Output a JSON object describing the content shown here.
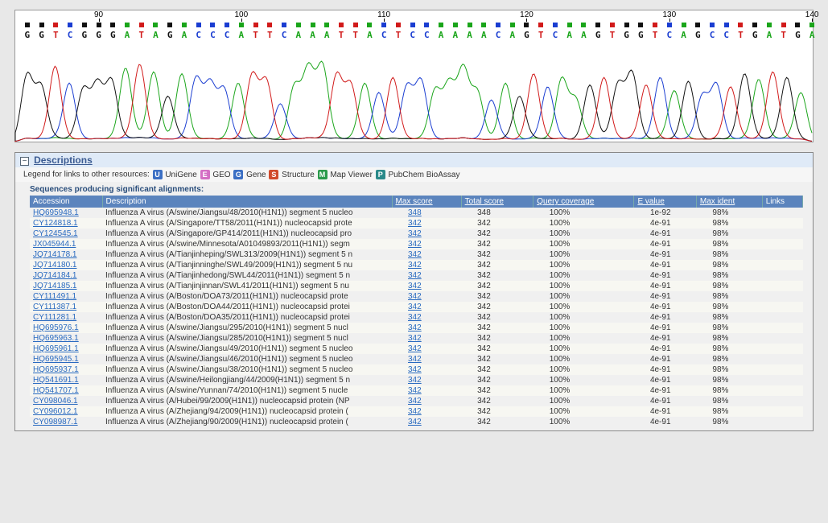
{
  "chromatogram": {
    "ruler_start": 85,
    "ruler_end": 140,
    "ruler_labels": [
      90,
      100,
      110,
      120,
      130,
      140
    ],
    "sequence": "GGTCGGGATAGACCCATTCAAATTACTCCAAAACAGTCAAGTGGTCAGCCTGATGA",
    "base_colors": {
      "A": "#1aa51a",
      "C": "#1a3dd1",
      "G": "#111111",
      "T": "#d11a1a"
    },
    "dot_colors": {
      "A": "#1aa51a",
      "C": "#1a3dd1",
      "G": "#111111",
      "T": "#d11a1a"
    },
    "peak_heights": [
      70,
      58,
      80,
      62,
      55,
      60,
      64,
      78,
      82,
      74,
      48,
      72,
      66,
      60,
      55,
      62,
      70,
      64,
      40,
      58,
      76,
      80,
      70,
      60,
      62,
      52,
      68,
      58,
      64,
      54,
      60,
      76,
      52,
      44,
      62,
      48,
      72,
      58,
      66,
      44,
      60,
      68,
      60,
      72,
      60,
      68,
      54,
      64,
      48,
      60,
      58,
      72,
      66,
      74,
      68,
      52
    ],
    "trace_height": 118,
    "background": "#ffffff"
  },
  "blast": {
    "section_title": "Descriptions",
    "legend_prefix": "Legend for links to other resources:",
    "legend_items": [
      {
        "badge": "U",
        "color": "#3b6fc4",
        "label": "UniGene"
      },
      {
        "badge": "E",
        "color": "#d46fc4",
        "label": "GEO"
      },
      {
        "badge": "G",
        "color": "#3b6fc4",
        "label": "Gene"
      },
      {
        "badge": "S",
        "color": "#d14a2a",
        "label": "Structure"
      },
      {
        "badge": "M",
        "color": "#2a9a4a",
        "label": "Map Viewer"
      },
      {
        "badge": "P",
        "color": "#2a8a8a",
        "label": "PubChem BioAssay"
      }
    ],
    "sig_label": "Sequences producing significant alignments:",
    "columns": [
      "Accession",
      "Description",
      "Max score",
      "Total score",
      "Query coverage",
      "E value",
      "Max ident",
      "Links"
    ],
    "rows": [
      {
        "acc": "HQ695948.1",
        "desc": "Influenza A virus (A/swine/Jiangsu/48/2010(H1N1)) segment 5 nucleo",
        "max": "348",
        "tot": "348",
        "cov": "100%",
        "ev": "1e-92",
        "ident": "98%"
      },
      {
        "acc": "CY124818.1",
        "desc": "Influenza A virus (A/Singapore/TT58/2011(H1N1)) nucleocapsid prote",
        "max": "342",
        "tot": "342",
        "cov": "100%",
        "ev": "4e-91",
        "ident": "98%"
      },
      {
        "acc": "CY124545.1",
        "desc": "Influenza A virus (A/Singapore/GP414/2011(H1N1)) nucleocapsid pro",
        "max": "342",
        "tot": "342",
        "cov": "100%",
        "ev": "4e-91",
        "ident": "98%"
      },
      {
        "acc": "JX045944.1",
        "desc": "Influenza A virus (A/swine/Minnesota/A01049893/2011(H1N1)) segm",
        "max": "342",
        "tot": "342",
        "cov": "100%",
        "ev": "4e-91",
        "ident": "98%"
      },
      {
        "acc": "JQ714178.1",
        "desc": "Influenza A virus (A/Tianjinheping/SWL313/2009(H1N1)) segment 5 n",
        "max": "342",
        "tot": "342",
        "cov": "100%",
        "ev": "4e-91",
        "ident": "98%"
      },
      {
        "acc": "JQ714180.1",
        "desc": "Influenza A virus (A/Tianjinninghe/SWL49/2009(H1N1)) segment 5 nu",
        "max": "342",
        "tot": "342",
        "cov": "100%",
        "ev": "4e-91",
        "ident": "98%"
      },
      {
        "acc": "JQ714184.1",
        "desc": "Influenza A virus (A/Tianjinhedong/SWL44/2011(H1N1)) segment 5 n",
        "max": "342",
        "tot": "342",
        "cov": "100%",
        "ev": "4e-91",
        "ident": "98%"
      },
      {
        "acc": "JQ714185.1",
        "desc": "Influenza A virus (A/Tianjinjinnan/SWL41/2011(H1N1)) segment 5 nu",
        "max": "342",
        "tot": "342",
        "cov": "100%",
        "ev": "4e-91",
        "ident": "98%"
      },
      {
        "acc": "CY111491.1",
        "desc": "Influenza A virus (A/Boston/DOA73/2011(H1N1)) nucleocapsid prote",
        "max": "342",
        "tot": "342",
        "cov": "100%",
        "ev": "4e-91",
        "ident": "98%"
      },
      {
        "acc": "CY111387.1",
        "desc": "Influenza A virus (A/Boston/DOA44/2011(H1N1)) nucleocapsid protei",
        "max": "342",
        "tot": "342",
        "cov": "100%",
        "ev": "4e-91",
        "ident": "98%"
      },
      {
        "acc": "CY111281.1",
        "desc": "Influenza A virus (A/Boston/DOA35/2011(H1N1)) nucleocapsid protei",
        "max": "342",
        "tot": "342",
        "cov": "100%",
        "ev": "4e-91",
        "ident": "98%"
      },
      {
        "acc": "HQ695976.1",
        "desc": "Influenza A virus (A/swine/Jiangsu/295/2010(H1N1)) segment 5 nucl",
        "max": "342",
        "tot": "342",
        "cov": "100%",
        "ev": "4e-91",
        "ident": "98%"
      },
      {
        "acc": "HQ695963.1",
        "desc": "Influenza A virus (A/swine/Jiangsu/285/2010(H1N1)) segment 5 nucl",
        "max": "342",
        "tot": "342",
        "cov": "100%",
        "ev": "4e-91",
        "ident": "98%"
      },
      {
        "acc": "HQ695961.1",
        "desc": "Influenza A virus (A/swine/Jiangsu/49/2010(H1N1)) segment 5 nucleo",
        "max": "342",
        "tot": "342",
        "cov": "100%",
        "ev": "4e-91",
        "ident": "98%"
      },
      {
        "acc": "HQ695945.1",
        "desc": "Influenza A virus (A/swine/Jiangsu/46/2010(H1N1)) segment 5 nucleo",
        "max": "342",
        "tot": "342",
        "cov": "100%",
        "ev": "4e-91",
        "ident": "98%"
      },
      {
        "acc": "HQ695937.1",
        "desc": "Influenza A virus (A/swine/Jiangsu/38/2010(H1N1)) segment 5 nucleo",
        "max": "342",
        "tot": "342",
        "cov": "100%",
        "ev": "4e-91",
        "ident": "98%"
      },
      {
        "acc": "HQ541691.1",
        "desc": "Influenza A virus (A/swine/Heilongjiang/44/2009(H1N1)) segment 5 n",
        "max": "342",
        "tot": "342",
        "cov": "100%",
        "ev": "4e-91",
        "ident": "98%"
      },
      {
        "acc": "HQ541707.1",
        "desc": "Influenza A virus (A/swine/Yunnan/74/2010(H1N1)) segment 5 nucle",
        "max": "342",
        "tot": "342",
        "cov": "100%",
        "ev": "4e-91",
        "ident": "98%"
      },
      {
        "acc": "CY098046.1",
        "desc": "Influenza A virus (A/Hubei/99/2009(H1N1)) nucleocapsid protein (NP",
        "max": "342",
        "tot": "342",
        "cov": "100%",
        "ev": "4e-91",
        "ident": "98%"
      },
      {
        "acc": "CY096012.1",
        "desc": "Influenza A virus (A/Zhejiang/94/2009(H1N1)) nucleocapsid protein (",
        "max": "342",
        "tot": "342",
        "cov": "100%",
        "ev": "4e-91",
        "ident": "98%"
      },
      {
        "acc": "CY098987.1",
        "desc": "Influenza A virus (A/Zhejiang/90/2009(H1N1)) nucleocapsid protein (",
        "max": "342",
        "tot": "342",
        "cov": "100%",
        "ev": "4e-91",
        "ident": "98%"
      }
    ]
  }
}
